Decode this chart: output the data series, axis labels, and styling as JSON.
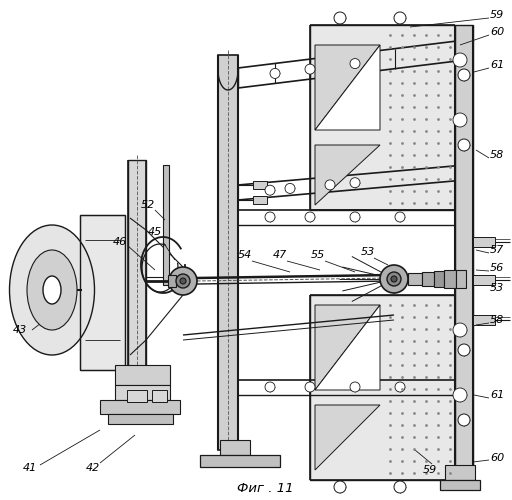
{
  "title": "Фиг . 11",
  "bg_color": "#ffffff",
  "line_color": "#1a1a1a",
  "label_color": "#000000",
  "figsize": [
    5.12,
    5.0
  ],
  "dpi": 100
}
